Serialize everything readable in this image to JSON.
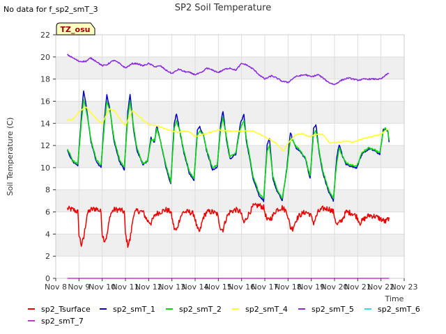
{
  "note": "No data for f_sp2_smT_3",
  "badge": "TZ_osu",
  "chart_data": {
    "type": "line",
    "title": "SP2 Soil Temperature",
    "xlabel": "Time",
    "ylabel": "Soil Temperature (C)",
    "xlim": [
      8,
      23
    ],
    "ylim": [
      0,
      22
    ],
    "x_ticks": [
      "Nov 8",
      "Nov 9",
      "Nov 10",
      "Nov 11",
      "Nov 12",
      "Nov 13",
      "Nov 14",
      "Nov 15",
      "Nov 16",
      "Nov 17",
      "Nov 18",
      "Nov 19",
      "Nov 20",
      "Nov 21",
      "Nov 22",
      "Nov 23"
    ],
    "y_ticks": [
      0,
      2,
      4,
      6,
      8,
      10,
      12,
      14,
      16,
      18,
      20,
      22
    ],
    "grid": true,
    "background_bands": [
      "#ffffff",
      "#efefef"
    ],
    "legend_position": "bottom",
    "series": [
      {
        "name": "sp2_Tsurface",
        "color": "#ee0000",
        "noise": 0.25,
        "x": [
          8.5,
          8.75,
          8.95,
          9.0,
          9.1,
          9.2,
          9.35,
          9.5,
          9.75,
          9.95,
          10.0,
          10.1,
          10.2,
          10.35,
          10.5,
          10.75,
          10.95,
          11.0,
          11.1,
          11.2,
          11.35,
          11.5,
          11.75,
          11.95,
          12.1,
          12.3,
          12.5,
          12.75,
          12.95,
          13.1,
          13.2,
          13.35,
          13.5,
          13.75,
          13.95,
          14.1,
          14.2,
          14.35,
          14.5,
          14.75,
          14.95,
          15.1,
          15.2,
          15.35,
          15.5,
          15.75,
          15.95,
          16.1,
          16.3,
          16.5,
          16.75,
          16.95,
          17.1,
          17.3,
          17.5,
          17.75,
          17.95,
          18.1,
          18.2,
          18.35,
          18.5,
          18.75,
          18.95,
          19.1,
          19.3,
          19.5,
          19.75,
          19.95,
          20.1,
          20.3,
          20.5,
          20.75,
          20.95,
          21.1,
          21.3,
          21.5,
          21.75,
          21.95,
          22.2,
          22.35
        ],
        "y": [
          6.3,
          6.2,
          6.0,
          4.0,
          3.0,
          3.6,
          5.8,
          6.2,
          6.3,
          6.0,
          4.0,
          3.4,
          3.8,
          5.8,
          6.2,
          6.2,
          6.0,
          4.0,
          3.0,
          3.5,
          5.8,
          6.1,
          6.0,
          5.2,
          5.0,
          5.8,
          6.0,
          6.2,
          6.0,
          4.5,
          4.3,
          5.5,
          6.0,
          6.0,
          5.8,
          4.4,
          4.2,
          5.5,
          6.0,
          6.0,
          5.8,
          4.5,
          4.4,
          5.5,
          6.0,
          6.2,
          6.0,
          5.0,
          5.8,
          6.5,
          6.6,
          6.4,
          5.2,
          5.5,
          6.2,
          6.4,
          6.0,
          4.6,
          4.5,
          5.3,
          5.7,
          6.0,
          5.8,
          5.0,
          6.0,
          6.3,
          6.3,
          6.0,
          4.8,
          5.2,
          6.0,
          5.9,
          5.6,
          5.0,
          5.4,
          5.7,
          5.6,
          5.4,
          5.1,
          5.5
        ]
      },
      {
        "name": "sp2_smT_1",
        "color": "#0000cc",
        "noise": 0.08,
        "x": [
          8.5,
          8.75,
          8.95,
          9.1,
          9.2,
          9.35,
          9.5,
          9.75,
          9.95,
          10.1,
          10.2,
          10.35,
          10.5,
          10.75,
          10.95,
          11.1,
          11.2,
          11.35,
          11.5,
          11.75,
          11.95,
          12.1,
          12.25,
          12.35,
          12.5,
          12.75,
          12.95,
          13.1,
          13.2,
          13.35,
          13.5,
          13.75,
          13.95,
          14.1,
          14.2,
          14.35,
          14.5,
          14.75,
          14.95,
          15.1,
          15.2,
          15.35,
          15.5,
          15.75,
          15.95,
          16.1,
          16.2,
          16.35,
          16.5,
          16.75,
          16.95,
          17.1,
          17.2,
          17.35,
          17.5,
          17.75,
          17.95,
          18.1,
          18.2,
          18.35,
          18.5,
          18.75,
          18.95,
          19.1,
          19.2,
          19.35,
          19.5,
          19.75,
          19.95,
          20.1,
          20.2,
          20.35,
          20.5,
          20.75,
          20.95,
          21.2,
          21.5,
          21.75,
          21.95,
          22.1,
          22.2,
          22.3,
          22.35
        ],
        "y": [
          11.5,
          10.5,
          10.2,
          14.5,
          17.0,
          15.0,
          12.5,
          10.5,
          10.0,
          14.5,
          16.6,
          15.0,
          12.5,
          10.5,
          9.8,
          15.0,
          16.6,
          13.5,
          11.5,
          10.3,
          10.5,
          12.7,
          12.3,
          13.8,
          12.5,
          10.0,
          8.5,
          14.0,
          14.9,
          13.2,
          11.5,
          9.5,
          8.8,
          13.5,
          13.7,
          13.0,
          11.5,
          9.8,
          10.0,
          14.0,
          15.1,
          12.5,
          10.8,
          11.2,
          14.0,
          14.8,
          12.5,
          10.8,
          9.0,
          7.5,
          7.0,
          12.0,
          12.6,
          9.0,
          8.0,
          7.0,
          10.0,
          13.2,
          12.5,
          11.8,
          11.5,
          10.8,
          9.0,
          13.5,
          13.9,
          11.2,
          9.5,
          7.8,
          7.0,
          11.0,
          12.1,
          11.0,
          10.3,
          10.1,
          10.0,
          11.3,
          11.7,
          11.5,
          11.2,
          13.4,
          13.5,
          13.2,
          12.3
        ]
      },
      {
        "name": "sp2_smT_2",
        "color": "#00dd00",
        "noise": 0.08,
        "x": [
          8.5,
          8.75,
          8.95,
          9.1,
          9.2,
          9.35,
          9.5,
          9.75,
          9.95,
          10.1,
          10.2,
          10.35,
          10.5,
          10.75,
          10.95,
          11.1,
          11.2,
          11.35,
          11.5,
          11.75,
          11.95,
          12.1,
          12.25,
          12.35,
          12.5,
          12.75,
          12.95,
          13.1,
          13.2,
          13.35,
          13.5,
          13.75,
          13.95,
          14.1,
          14.2,
          14.35,
          14.5,
          14.75,
          14.95,
          15.1,
          15.2,
          15.35,
          15.5,
          15.75,
          15.95,
          16.1,
          16.2,
          16.35,
          16.5,
          16.75,
          16.95,
          17.1,
          17.2,
          17.35,
          17.5,
          17.75,
          17.95,
          18.1,
          18.2,
          18.35,
          18.5,
          18.75,
          18.95,
          19.1,
          19.2,
          19.35,
          19.5,
          19.75,
          19.95,
          20.1,
          20.2,
          20.35,
          20.5,
          20.75,
          20.95,
          21.2,
          21.5,
          21.75,
          21.95,
          22.1,
          22.2,
          22.3,
          22.35
        ],
        "y": [
          11.7,
          10.6,
          10.3,
          14.0,
          16.2,
          14.8,
          12.7,
          10.7,
          10.2,
          14.0,
          16.0,
          15.0,
          12.7,
          10.7,
          10.0,
          14.5,
          16.0,
          13.7,
          11.7,
          10.4,
          10.6,
          12.5,
          12.5,
          13.5,
          12.5,
          10.2,
          8.7,
          13.5,
          14.2,
          13.3,
          11.6,
          9.7,
          9.0,
          13.0,
          13.3,
          13.0,
          11.6,
          10.0,
          10.2,
          13.5,
          14.5,
          12.7,
          11.0,
          11.3,
          13.6,
          14.2,
          12.7,
          11.0,
          9.2,
          7.7,
          7.2,
          11.5,
          12.0,
          9.2,
          8.2,
          7.2,
          9.8,
          12.6,
          12.5,
          11.9,
          11.6,
          10.9,
          9.2,
          13.0,
          13.4,
          11.4,
          9.7,
          8.0,
          7.2,
          10.5,
          11.8,
          11.0,
          10.4,
          10.2,
          10.1,
          11.4,
          11.8,
          11.6,
          11.3,
          13.3,
          13.6,
          13.3,
          12.5
        ]
      },
      {
        "name": "sp2_smT_4",
        "color": "#ffff33",
        "noise": 0.05,
        "x": [
          8.5,
          8.75,
          9.0,
          9.3,
          9.5,
          9.8,
          10.0,
          10.3,
          10.5,
          10.8,
          11.0,
          11.3,
          11.5,
          11.8,
          12.0,
          12.3,
          12.6,
          13.0,
          13.3,
          13.5,
          13.8,
          14.0,
          14.5,
          15.0,
          15.5,
          16.0,
          16.5,
          17.0,
          17.5,
          17.8,
          18.0,
          18.3,
          18.6,
          18.9,
          19.2,
          19.5,
          19.8,
          20.2,
          20.5,
          20.8,
          21.2,
          21.6,
          22.0,
          22.3
        ],
        "y": [
          14.3,
          14.4,
          15.0,
          15.5,
          15.0,
          14.3,
          14.0,
          15.3,
          15.2,
          14.3,
          13.8,
          15.2,
          14.8,
          14.2,
          13.9,
          13.8,
          13.6,
          13.3,
          13.2,
          13.3,
          13.2,
          12.8,
          13.1,
          13.4,
          13.3,
          13.3,
          13.3,
          12.8,
          12.2,
          11.5,
          12.2,
          12.9,
          13.1,
          12.8,
          13.0,
          13.0,
          12.2,
          12.3,
          12.4,
          12.3,
          12.6,
          12.8,
          13.0,
          13.5
        ]
      },
      {
        "name": "sp2_smT_5",
        "color": "#8a2be2",
        "noise": 0.06,
        "x": [
          8.5,
          8.75,
          9.0,
          9.3,
          9.5,
          9.75,
          10.0,
          10.2,
          10.5,
          10.75,
          11.0,
          11.3,
          11.5,
          11.75,
          12.0,
          12.3,
          12.5,
          12.75,
          13.0,
          13.3,
          13.5,
          13.75,
          14.0,
          14.3,
          14.5,
          14.75,
          15.0,
          15.3,
          15.5,
          15.75,
          16.0,
          16.2,
          16.5,
          16.75,
          17.0,
          17.3,
          17.5,
          17.75,
          18.0,
          18.3,
          18.5,
          18.75,
          19.0,
          19.3,
          19.5,
          19.75,
          20.0,
          20.3,
          20.6,
          21.0,
          21.3,
          21.6,
          22.0,
          22.3,
          22.35
        ],
        "y": [
          20.2,
          19.9,
          19.6,
          19.6,
          19.9,
          19.6,
          19.2,
          19.3,
          19.7,
          19.4,
          19.0,
          19.4,
          19.4,
          19.2,
          19.4,
          19.1,
          19.2,
          18.8,
          18.5,
          18.9,
          18.7,
          18.6,
          18.4,
          18.6,
          19.0,
          18.8,
          18.6,
          18.9,
          19.0,
          18.8,
          19.4,
          19.3,
          18.9,
          18.4,
          18.0,
          18.3,
          18.1,
          17.8,
          17.7,
          18.2,
          18.3,
          18.4,
          18.2,
          18.4,
          18.1,
          17.7,
          17.5,
          17.9,
          18.1,
          17.9,
          18.0,
          18.0,
          18.0,
          18.5,
          18.5
        ]
      },
      {
        "name": "sp2_smT_6",
        "color": "#33dddd",
        "noise": 0,
        "x": [],
        "y": []
      },
      {
        "name": "sp2_smT_7",
        "color": "#cc33cc",
        "noise": 0,
        "x": [
          8.5,
          22.35
        ],
        "y": [
          0.0,
          0.0
        ]
      }
    ]
  }
}
